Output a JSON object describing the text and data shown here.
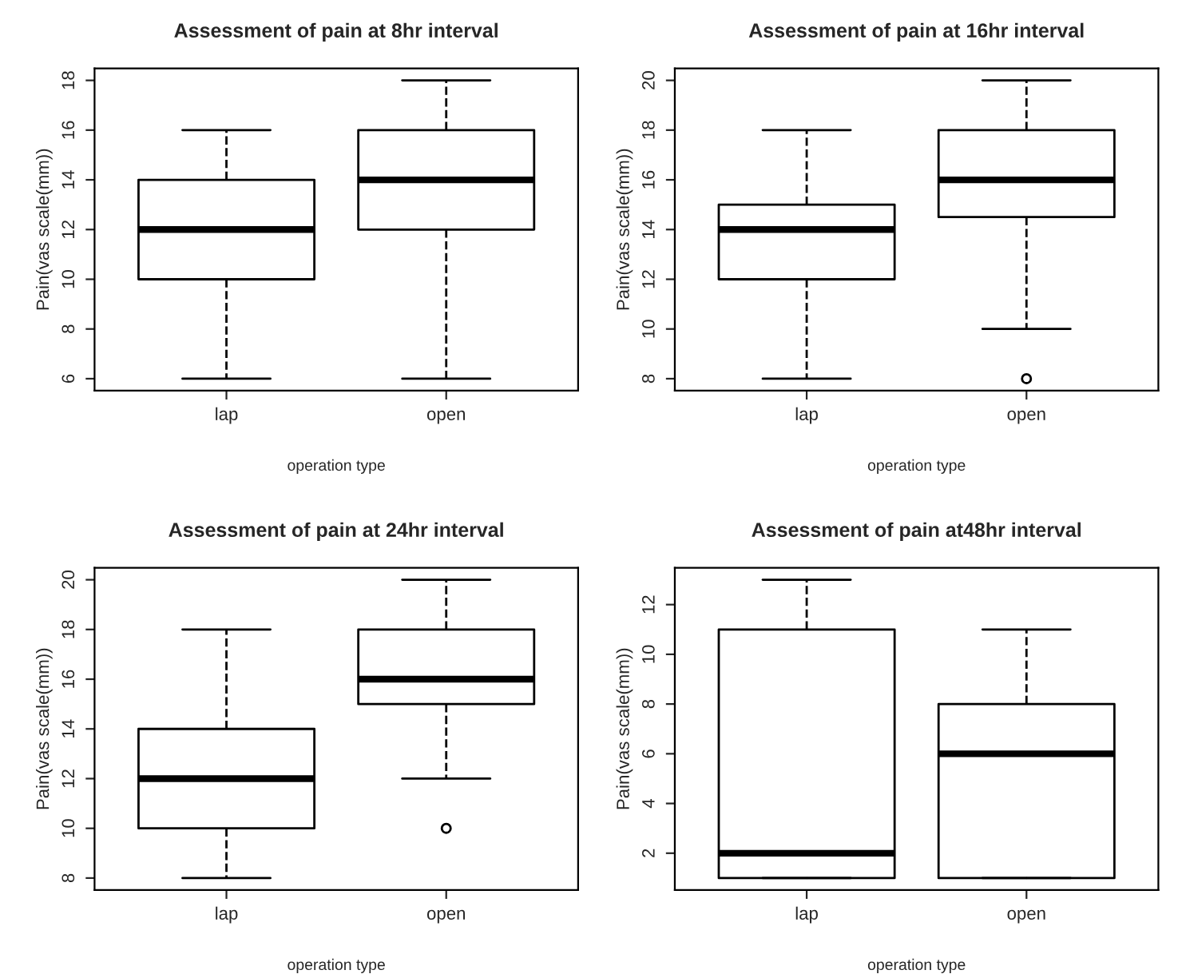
{
  "chart_data": [
    {
      "type": "box",
      "title": "Assessment of pain at 8hr interval",
      "xlabel": "operation type",
      "ylabel": "Pain(vas scale(mm))",
      "categories": [
        "lap",
        "open"
      ],
      "ylim": [
        5.52,
        18.48
      ],
      "yticks": [
        6,
        8,
        10,
        12,
        14,
        16,
        18
      ],
      "grid": false,
      "legend": false,
      "boxes": [
        {
          "low": 6,
          "q1": 10,
          "median": 12,
          "q3": 14,
          "high": 16
        },
        {
          "low": 6,
          "q1": 12,
          "median": 14,
          "q3": 16,
          "high": 18
        }
      ]
    },
    {
      "type": "box",
      "title": "Assessment of pain at 16hr interval",
      "xlabel": "operation type",
      "ylabel": "Pain(vas scale(mm))",
      "categories": [
        "lap",
        "open"
      ],
      "ylim": [
        7.52,
        20.48
      ],
      "yticks": [
        8,
        10,
        12,
        14,
        16,
        18,
        20
      ],
      "grid": false,
      "legend": false,
      "boxes": [
        {
          "low": 8,
          "q1": 12,
          "median": 14,
          "q3": 15,
          "high": 18
        },
        {
          "low": 10,
          "q1": 14.5,
          "median": 16,
          "q3": 18,
          "high": 20,
          "outliers": [
            8
          ]
        }
      ]
    },
    {
      "type": "box",
      "title": "Assessment of pain at 24hr interval",
      "xlabel": "operation type",
      "ylabel": "Pain(vas scale(mm))",
      "categories": [
        "lap",
        "open"
      ],
      "ylim": [
        7.52,
        20.48
      ],
      "yticks": [
        8,
        10,
        12,
        14,
        16,
        18,
        20
      ],
      "grid": false,
      "legend": false,
      "boxes": [
        {
          "low": 8,
          "q1": 10,
          "median": 12,
          "q3": 14,
          "high": 18
        },
        {
          "low": 12,
          "q1": 15,
          "median": 16,
          "q3": 18,
          "high": 20,
          "outliers": [
            10
          ]
        }
      ]
    },
    {
      "type": "box",
      "title": "Assessment of pain at48hr interval",
      "xlabel": "operation type",
      "ylabel": "Pain(vas scale(mm))",
      "categories": [
        "lap",
        "open"
      ],
      "ylim": [
        0.52,
        13.48
      ],
      "yticks": [
        2,
        4,
        6,
        8,
        10,
        12
      ],
      "grid": false,
      "legend": false,
      "boxes": [
        {
          "low": 1,
          "q1": 1,
          "median": 2,
          "q3": 11,
          "high": 13
        },
        {
          "low": 1,
          "q1": 1,
          "median": 6,
          "q3": 8,
          "high": 11
        }
      ]
    }
  ]
}
